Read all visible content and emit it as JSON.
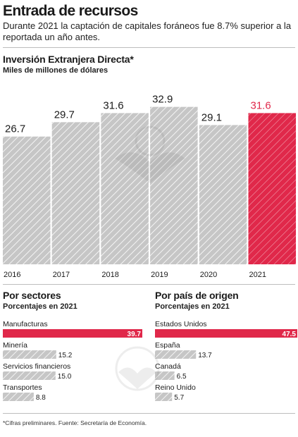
{
  "header": {
    "title": "Entrada de recursos",
    "subtitle": "Durante 2021 la captación de capitales foráneos fue 8.7% superior a la reportada un año antes."
  },
  "colors": {
    "highlight": "#e0284a",
    "bar": "#c6c6c6",
    "hatch": "#ffffff",
    "text": "#1a1a1a"
  },
  "chart_data": [
    {
      "type": "bar",
      "title": "Inversión Extranjera Directa*",
      "subtitle": "Miles de millones de dólares",
      "categories": [
        "2016",
        "2017",
        "2018",
        "2019",
        "2020",
        "2021"
      ],
      "values": [
        26.7,
        29.7,
        31.6,
        32.9,
        29.1,
        31.6
      ],
      "labels": [
        "26.7",
        "29.7",
        "31.6",
        "32.9",
        "29.1",
        "31.6"
      ],
      "highlight_index": 5,
      "ylim": [
        0,
        38
      ],
      "grid": false
    },
    {
      "type": "bar",
      "orientation": "horizontal",
      "title": "Por sectores",
      "subtitle": "Porcentajes en 2021",
      "categories": [
        "Manufacturas",
        "Minería",
        "Servicios financieros",
        "Transportes"
      ],
      "values": [
        39.7,
        15.2,
        15.0,
        8.8
      ],
      "labels": [
        "39.7",
        "15.2",
        "15.0",
        "8.8"
      ],
      "highlight_index": 0,
      "xlim": [
        0,
        39.7
      ]
    },
    {
      "type": "bar",
      "orientation": "horizontal",
      "title": "Por país de origen",
      "subtitle": "Porcentajes en 2021",
      "categories": [
        "Estados Unidos",
        "España",
        "Canadá",
        "Reino Unido"
      ],
      "values": [
        47.5,
        13.7,
        6.5,
        5.7
      ],
      "labels": [
        "47.5",
        "13.7",
        "6.5",
        "5.7"
      ],
      "highlight_index": 0,
      "xlim": [
        0,
        47.5
      ]
    }
  ],
  "footnote": "*Cifras preliminares. Fuente: Secretaría de Economía."
}
